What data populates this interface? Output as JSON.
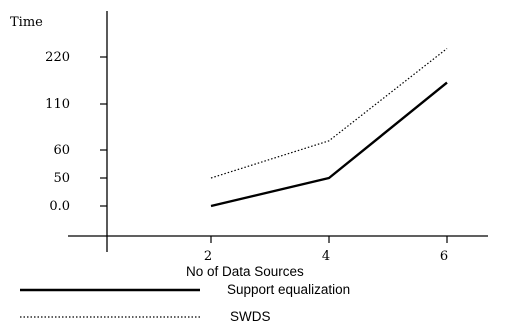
{
  "chart_data": {
    "type": "line",
    "ylabel": "Time",
    "xlabel": "No of Data Sources",
    "y_tick_labels": [
      "0.0",
      "50",
      "60",
      "110",
      "220"
    ],
    "x": [
      2,
      4,
      6
    ],
    "x_tick_labels": [
      "2",
      "4",
      "6"
    ],
    "series": [
      {
        "name": "Support equalization",
        "values": [
          0.0,
          50,
          160
        ],
        "style": "solid",
        "color": "#000000"
      },
      {
        "name": "SWDS",
        "values": [
          50,
          70,
          240
        ],
        "style": "dotted",
        "color": "#000000"
      }
    ],
    "legend_placement": "bottom-left",
    "grid": false
  }
}
